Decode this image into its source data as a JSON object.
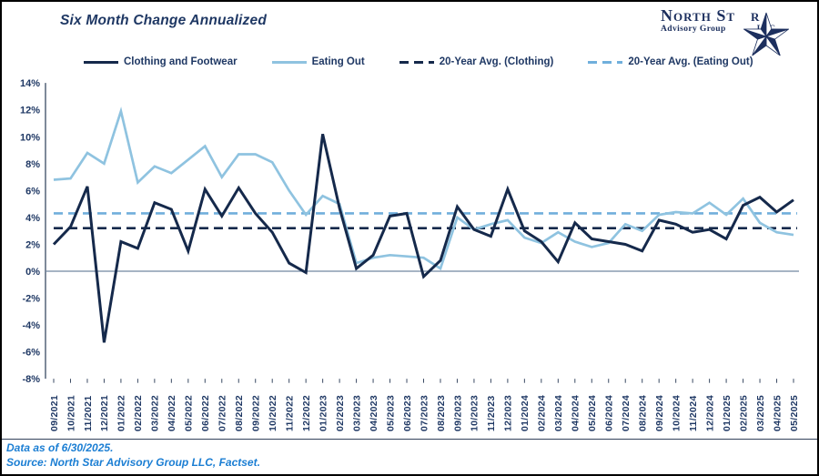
{
  "title": "Six Month Change Annualized",
  "logo": {
    "text": "North Star",
    "name_pre": "North St",
    "name_post": "r",
    "subtitle": "Advisory Group",
    "suffix": "LLC",
    "star_color": "#1c2f5e"
  },
  "footer": {
    "line1": "Data as of 6/30/2025.",
    "line2": "Source: North Star Advisory Group LLC, Factset.",
    "text_color": "#1B7ED3"
  },
  "colors": {
    "accent_navy": "#15294B",
    "light_blue": "#8FC3E0",
    "dashed_light_blue": "#70AFDC",
    "axis_text": "#1F3864"
  },
  "chart_data": {
    "type": "line",
    "title": "Six Month Change Annualized",
    "grid": false,
    "legend_position": "top",
    "ylim": [
      -8,
      14
    ],
    "ytick_step": 2,
    "ytick_format": "percent",
    "x_labels": [
      "09/2021",
      "10/2021",
      "11/2021",
      "12/2021",
      "01/2022",
      "02/2022",
      "03/2022",
      "04/2022",
      "05/2022",
      "06/2022",
      "07/2022",
      "08/2022",
      "09/2022",
      "10/2022",
      "11/2022",
      "12/2022",
      "01/2023",
      "02/2023",
      "03/2023",
      "04/2023",
      "05/2023",
      "06/2023",
      "07/2023",
      "08/2023",
      "09/2023",
      "10/2023",
      "11/2023",
      "12/2023",
      "01/2024",
      "02/2024",
      "03/2024",
      "04/2024",
      "05/2024",
      "06/2024",
      "07/2024",
      "08/2024",
      "09/2024",
      "10/2024",
      "11/2024",
      "12/2024",
      "01/2025",
      "02/2025",
      "03/2025",
      "04/2025",
      "05/2025"
    ],
    "series": [
      {
        "name": "Clothing and Footwear",
        "style": "solid",
        "color": "#15294B",
        "values": [
          2.0,
          3.3,
          6.3,
          -5.3,
          2.2,
          1.7,
          5.1,
          4.6,
          1.5,
          6.1,
          4.1,
          6.2,
          4.3,
          2.9,
          0.6,
          -0.1,
          10.2,
          4.7,
          0.2,
          1.2,
          4.1,
          4.3,
          -0.4,
          0.8,
          4.8,
          3.1,
          2.6,
          6.1,
          3.0,
          2.2,
          0.7,
          3.6,
          2.4,
          2.2,
          2.0,
          1.5,
          3.8,
          3.5,
          2.9,
          3.1,
          2.4,
          4.9,
          5.5,
          4.4,
          5.3
        ]
      },
      {
        "name": "Eating Out",
        "style": "solid",
        "color": "#8FC3E0",
        "values": [
          6.8,
          6.9,
          8.8,
          8.0,
          11.9,
          6.6,
          7.8,
          7.3,
          8.3,
          9.3,
          7.0,
          8.7,
          8.7,
          8.1,
          6.0,
          4.2,
          5.6,
          5.0,
          0.6,
          1.0,
          1.2,
          1.1,
          1.0,
          0.2,
          4.0,
          3.1,
          3.5,
          3.8,
          2.5,
          2.1,
          2.9,
          2.2,
          1.8,
          2.1,
          3.5,
          3.0,
          4.2,
          4.4,
          4.3,
          5.1,
          4.2,
          5.4,
          3.6,
          2.9,
          2.7
        ]
      },
      {
        "name": "20-Year Avg. (Clothing)",
        "style": "dashed",
        "color": "#15294B",
        "value": 3.2
      },
      {
        "name": "20-Year Avg. (Eating Out)",
        "style": "dashed",
        "color": "#70AFDC",
        "value": 4.3
      }
    ]
  }
}
